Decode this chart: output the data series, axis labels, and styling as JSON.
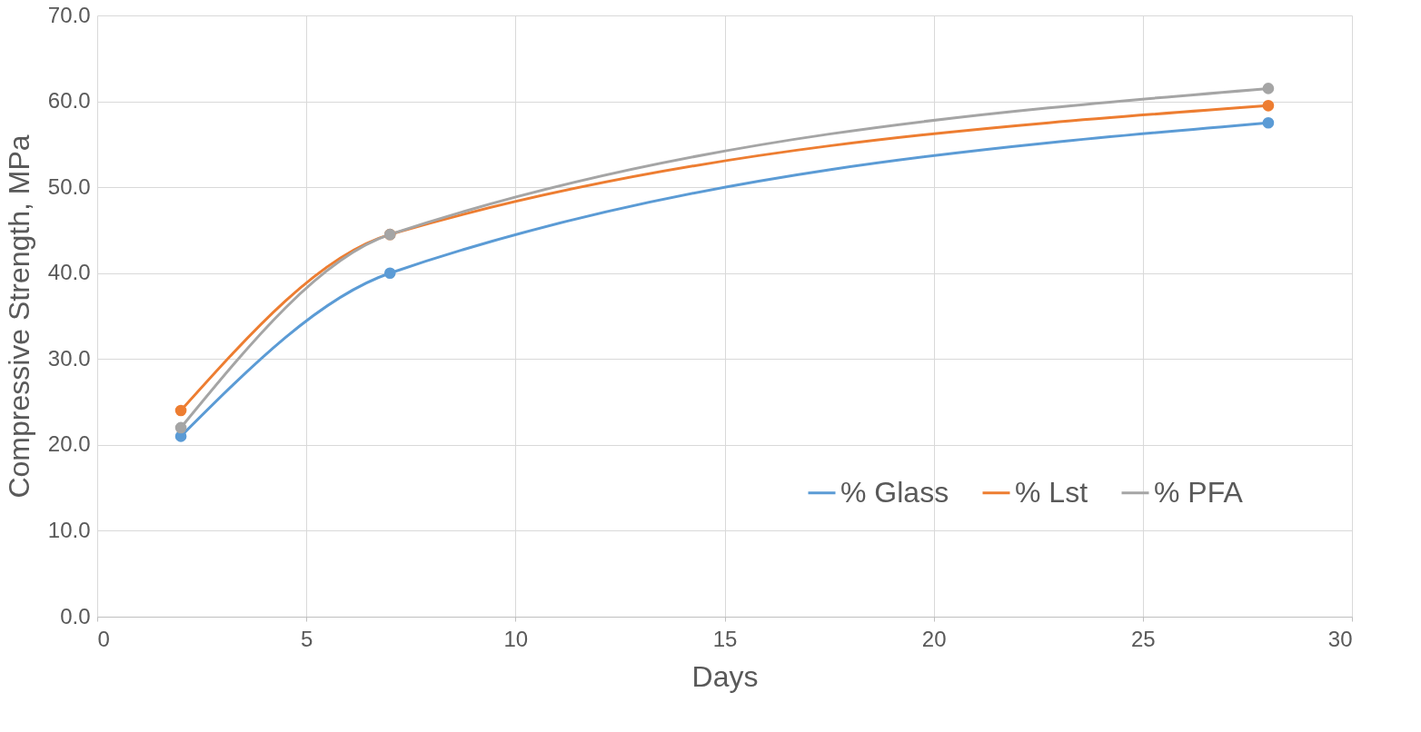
{
  "chart_data": {
    "type": "line",
    "xlabel": "Days",
    "ylabel": "Compressive Strength, MPa",
    "x": [
      2,
      7,
      28
    ],
    "series": [
      {
        "name": "% Glass",
        "color": "#5b9bd5",
        "values": [
          21.0,
          40.0,
          57.5
        ]
      },
      {
        "name": "% Lst",
        "color": "#ed7d31",
        "values": [
          24.0,
          44.5,
          59.5
        ]
      },
      {
        "name": "% PFA",
        "color": "#a5a5a5",
        "values": [
          22.0,
          44.5,
          61.5
        ]
      }
    ],
    "xlim": [
      0,
      30
    ],
    "xticks": [
      0,
      5,
      10,
      15,
      20,
      25,
      30
    ],
    "ylim": [
      0,
      70
    ],
    "yticks": [
      {
        "value": 0,
        "label": "0.0"
      },
      {
        "value": 10,
        "label": "10.0"
      },
      {
        "value": 20,
        "label": "20.0"
      },
      {
        "value": 30,
        "label": "30.0"
      },
      {
        "value": 40,
        "label": "40.0"
      },
      {
        "value": 50,
        "label": "50.0"
      },
      {
        "value": 60,
        "label": "60.0"
      },
      {
        "value": 70,
        "label": "70.0"
      }
    ],
    "grid": true,
    "legend": "bottom right",
    "marker": "circle",
    "line_style": "solid"
  }
}
